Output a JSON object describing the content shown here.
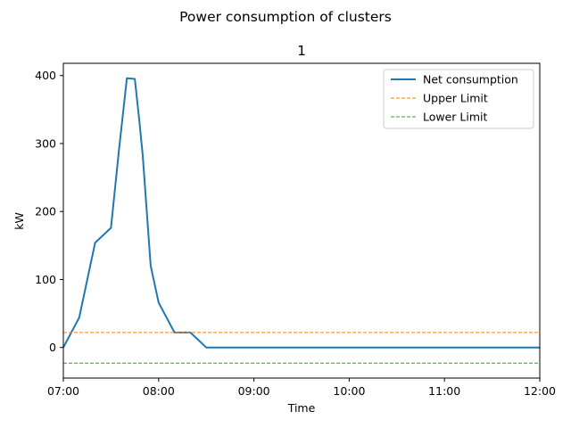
{
  "suptitle": "Power consumption of clusters",
  "chart_data": {
    "type": "line",
    "title": "1",
    "xlabel": "Time",
    "ylabel": "kW",
    "xlim": [
      "07:00",
      "12:00"
    ],
    "ylim": [
      -45,
      418
    ],
    "xticks": [
      "07:00",
      "08:00",
      "09:00",
      "10:00",
      "11:00",
      "12:00"
    ],
    "yticks": [
      0,
      100,
      200,
      300,
      400
    ],
    "grid": false,
    "legend_position": "top-right",
    "series": [
      {
        "name": "Net consumption",
        "color": "#1f77b4",
        "style": "solid",
        "x": [
          "07:00",
          "07:10",
          "07:20",
          "07:30",
          "07:35",
          "07:40",
          "07:45",
          "07:48",
          "07:50",
          "07:55",
          "08:00",
          "08:10",
          "08:20",
          "08:30",
          "12:00"
        ],
        "y": [
          0,
          44,
          154,
          176,
          290,
          396,
          395,
          330,
          282,
          120,
          66,
          22,
          22,
          0,
          0
        ]
      },
      {
        "name": "Upper Limit",
        "color": "#ff7f0e",
        "style": "dashed",
        "x": [
          "07:00",
          "12:00"
        ],
        "y": [
          22,
          22
        ]
      },
      {
        "name": "Lower Limit",
        "color": "#2ca02c",
        "style": "dashed",
        "x": [
          "07:00",
          "12:00"
        ],
        "y": [
          -23,
          -23
        ]
      }
    ]
  }
}
